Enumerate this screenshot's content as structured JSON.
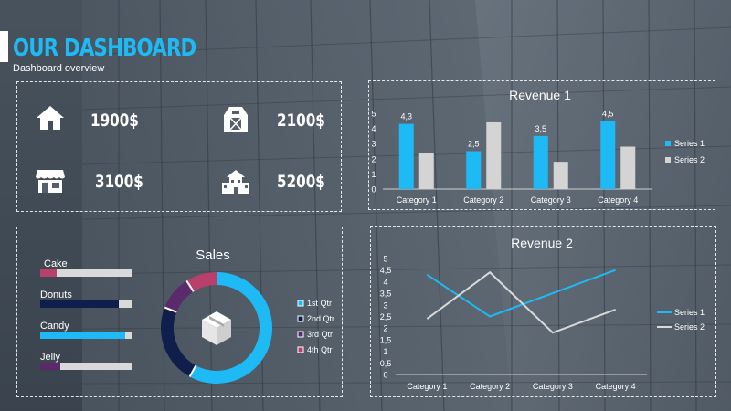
{
  "header": {
    "title": "OUR DASHBOARD",
    "subtitle": "Dashboard overview"
  },
  "stats": [
    {
      "icon": "house-icon",
      "value": "1900$"
    },
    {
      "icon": "barn-icon",
      "value": "2100$"
    },
    {
      "icon": "storefront-icon",
      "value": "3100$"
    },
    {
      "icon": "building-icon",
      "value": "5200$"
    }
  ],
  "colors": {
    "accent_blue": "#1ebaf5",
    "light_gray": "#d4d4d4",
    "navy": "#0f1e4b",
    "purple": "#5a2a6b",
    "rose": "#b8406a"
  },
  "progress": {
    "items": [
      {
        "label": "Cake",
        "value": 0.18,
        "color": "#b8406a"
      },
      {
        "label": "Donuts",
        "value": 0.86,
        "color": "#0f1e4b"
      },
      {
        "label": "Candy",
        "value": 0.93,
        "color": "#1ebaf5"
      },
      {
        "label": "Jelly",
        "value": 0.22,
        "color": "#5a2a6b"
      }
    ]
  },
  "chart_data": [
    {
      "type": "bar",
      "title": "Revenue 1",
      "categories": [
        "Category 1",
        "Category 2",
        "Category 3",
        "Category 4"
      ],
      "series": [
        {
          "name": "Series 1",
          "values": [
            4.3,
            2.5,
            3.5,
            4.5
          ],
          "labels": [
            "4,3",
            "2,5",
            "3,5",
            "4,5"
          ],
          "color": "#1ebaf5"
        },
        {
          "name": "Series 2",
          "values": [
            2.4,
            4.4,
            1.8,
            2.8
          ],
          "color": "#d4d4d4"
        }
      ],
      "ylim": [
        0,
        5
      ],
      "yticks": [
        "0",
        "1",
        "2",
        "3",
        "4",
        "5"
      ],
      "legend": "right"
    },
    {
      "type": "pie",
      "title": "Sales",
      "categories": [
        "1st Qtr",
        "2nd Qtr",
        "3rd Qtr",
        "4th Qtr"
      ],
      "values": [
        58,
        23,
        10,
        9
      ],
      "colors": [
        "#1ebaf5",
        "#0f1e4b",
        "#5a2a6b",
        "#b8406a"
      ],
      "center_icon": "box-icon",
      "legend": "right"
    },
    {
      "type": "line",
      "title": "Revenue 2",
      "categories": [
        "Category 1",
        "Category 2",
        "Category 3",
        "Category 4"
      ],
      "series": [
        {
          "name": "Series 1",
          "values": [
            4.3,
            2.5,
            3.5,
            4.5
          ],
          "color": "#1ebaf5"
        },
        {
          "name": "Series 2",
          "values": [
            2.4,
            4.4,
            1.8,
            2.8
          ],
          "color": "#d9d9d9"
        }
      ],
      "ylim": [
        0,
        5
      ],
      "yticks": [
        "0",
        "0,5",
        "1",
        "1,5",
        "2",
        "2,5",
        "3",
        "3,5",
        "4",
        "4,5",
        "5"
      ],
      "legend": "right"
    }
  ]
}
